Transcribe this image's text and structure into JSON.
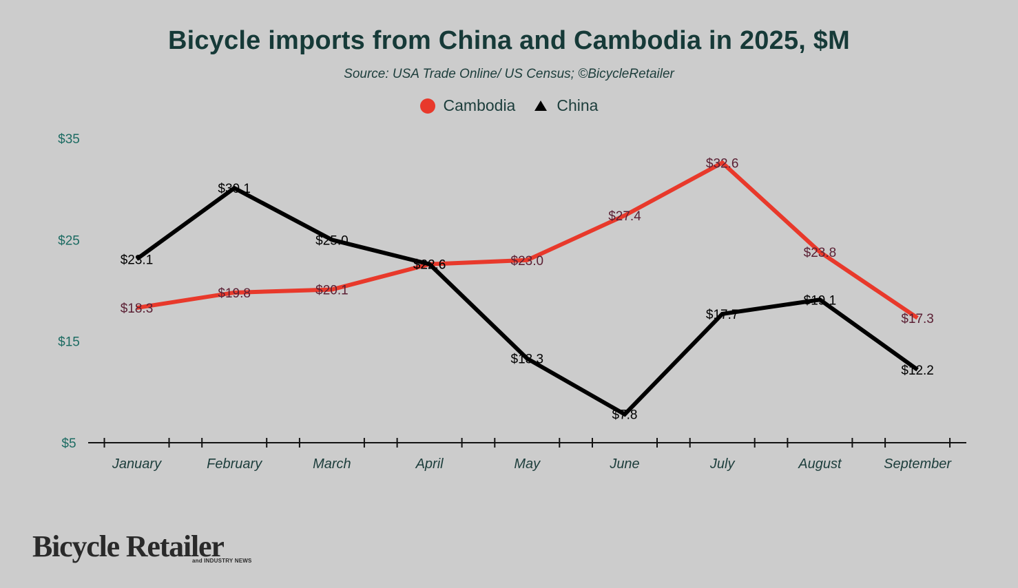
{
  "chart_data": {
    "type": "line",
    "title": "Bicycle imports from China and Cambodia in 2025, $M",
    "subtitle": "Source: USA Trade Online/ US Census; ©BicycleRetailer",
    "categories": [
      "January",
      "February",
      "March",
      "April",
      "May",
      "June",
      "July",
      "August",
      "September"
    ],
    "series": [
      {
        "name": "Cambodia",
        "color": "#e8392b",
        "marker": "circle",
        "values": [
          18.3,
          19.8,
          20.1,
          22.6,
          23.0,
          27.4,
          32.6,
          23.8,
          17.3
        ],
        "labels": [
          "$18.3",
          "$19.8",
          "$20.1",
          "$22.6",
          "$23.0",
          "$27.4",
          "$32.6",
          "$23.8",
          "$17.3"
        ]
      },
      {
        "name": "China",
        "color": "#000000",
        "marker": "triangle",
        "values": [
          23.1,
          30.1,
          25.0,
          22.6,
          13.3,
          7.8,
          17.7,
          19.1,
          12.2
        ],
        "labels": [
          "$23.1",
          "$30.1",
          "$25.0",
          "$22.6",
          "$13.3",
          "$7.8",
          "$17.7",
          "$19.1",
          "$12.2"
        ]
      }
    ],
    "ylim": [
      5,
      35
    ],
    "yticks": [
      5,
      15,
      25,
      35
    ],
    "ytick_labels": [
      "$5",
      "$15",
      "$25",
      "$35"
    ],
    "legend_placement": "top-center",
    "grid": false
  },
  "logo": {
    "main": "Bicycle Retailer",
    "sub": "and INDUSTRY NEWS"
  }
}
